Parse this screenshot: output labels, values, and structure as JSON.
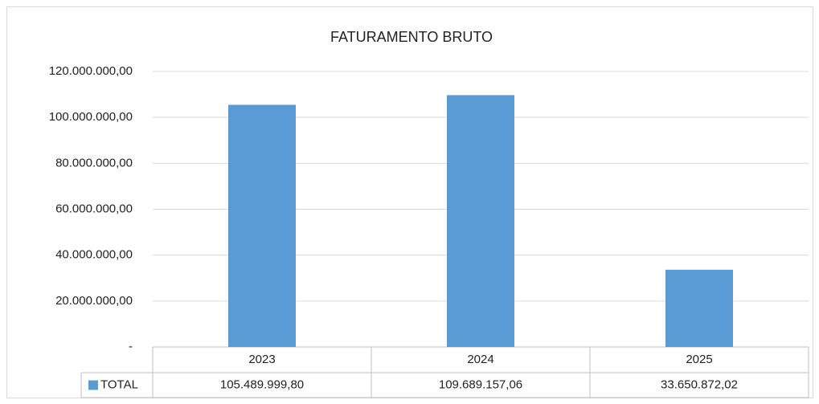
{
  "chart_data": {
    "type": "bar",
    "title": "FATURAMENTO BRUTO",
    "categories": [
      "2023",
      "2024",
      "2025"
    ],
    "series": [
      {
        "name": "TOTAL",
        "color": "#5b9bd5",
        "values": [
          105489999.8,
          109689157.06,
          33650872.02
        ],
        "value_labels": [
          "105.489.999,80",
          "109.689.157,06",
          "33.650.872,02"
        ]
      }
    ],
    "ylim": [
      0,
      120000000
    ],
    "yticks": [
      {
        "value": 0,
        "label": "-"
      },
      {
        "value": 20000000,
        "label": "20.000.000,00"
      },
      {
        "value": 40000000,
        "label": "40.000.000,00"
      },
      {
        "value": 60000000,
        "label": "60.000.000,00"
      },
      {
        "value": 80000000,
        "label": "80.000.000,00"
      },
      {
        "value": 100000000,
        "label": "100.000.000,00"
      },
      {
        "value": 120000000,
        "label": "120.000.000,00"
      }
    ],
    "grid": true
  }
}
